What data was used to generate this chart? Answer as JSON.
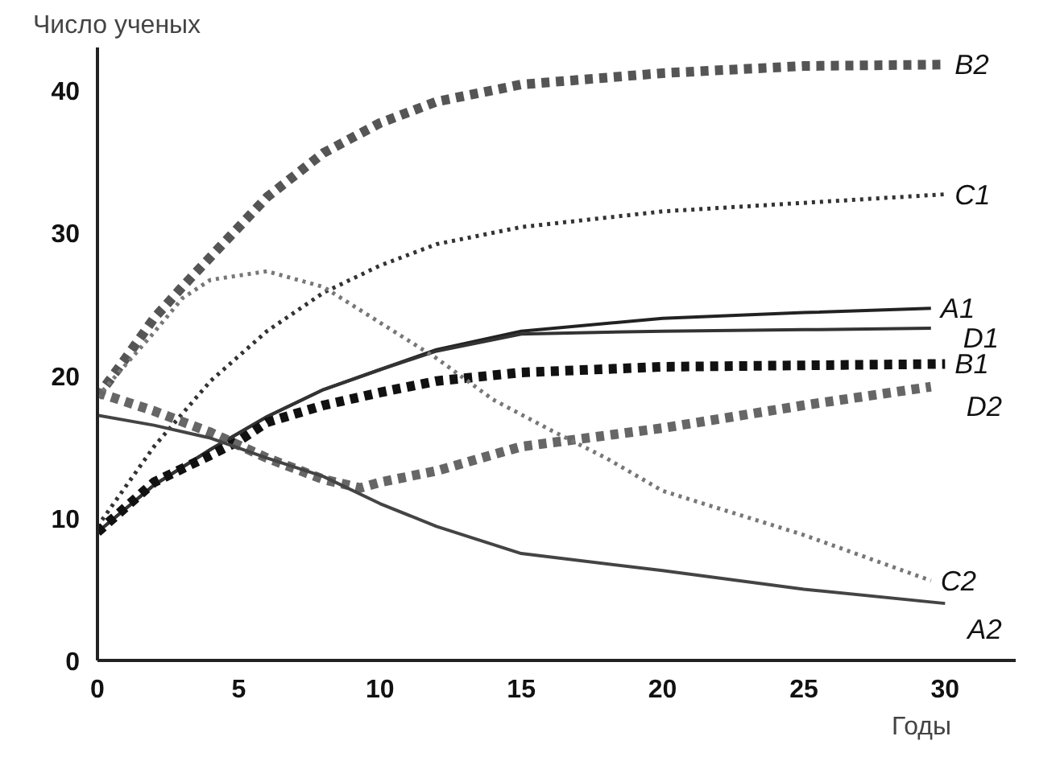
{
  "chart_data": {
    "type": "line",
    "ylabel": "Число ученых",
    "xlabel": "Годы",
    "xlim": [
      0,
      32.5
    ],
    "ylim": [
      0,
      43
    ],
    "xticks": [
      0,
      5,
      10,
      15,
      20,
      25,
      30
    ],
    "yticks": [
      0,
      10,
      20,
      30,
      40
    ],
    "grid": false,
    "series": [
      {
        "name": "B2",
        "color": "#555555",
        "line_style": "dashed",
        "x": [
          0,
          1,
          2,
          3,
          4,
          5,
          6,
          8,
          10,
          12,
          15,
          20,
          25,
          30
        ],
        "values": [
          18.5,
          21.2,
          24,
          26.2,
          28.3,
          30.4,
          32.5,
          35.6,
          37.7,
          39.2,
          40.4,
          41.2,
          41.7,
          41.8
        ]
      },
      {
        "name": "C1",
        "color": "#333333",
        "line_style": "dotted",
        "x": [
          0,
          2,
          4,
          6,
          8,
          10,
          12,
          15,
          20,
          25,
          30
        ],
        "values": [
          9.4,
          15,
          19.6,
          23.1,
          25.8,
          27.7,
          29.2,
          30.4,
          31.5,
          32.1,
          32.7
        ]
      },
      {
        "name": "A1",
        "color": "#222222",
        "line_style": "solid",
        "x": [
          0,
          2,
          4,
          6,
          8,
          10,
          12,
          15,
          20,
          25,
          29.5
        ],
        "values": [
          9,
          12.3,
          14.8,
          17.1,
          19,
          20.4,
          21.8,
          23.1,
          24,
          24.4,
          24.7
        ]
      },
      {
        "name": "D1",
        "color": "#333333",
        "line_style": "solid",
        "x": [
          0,
          2,
          4,
          6,
          8,
          10,
          12,
          15,
          20,
          25,
          29.5
        ],
        "values": [
          9,
          12.3,
          14.8,
          17.1,
          19,
          20.4,
          21.7,
          22.9,
          23.1,
          23.2,
          23.3
        ]
      },
      {
        "name": "B1",
        "color": "#111111",
        "line_style": "dashed",
        "x": [
          0,
          2,
          4,
          5,
          6,
          8,
          10,
          12,
          15,
          20,
          30
        ],
        "values": [
          9,
          12.5,
          14.4,
          15.4,
          16.7,
          17.9,
          18.8,
          19.6,
          20.2,
          20.6,
          20.8
        ]
      },
      {
        "name": "D2",
        "color": "#666666",
        "line_style": "dashed",
        "x": [
          0,
          2,
          4,
          6,
          8,
          9.3,
          10,
          12,
          15,
          20,
          25,
          29.5
        ],
        "values": [
          18.8,
          17.5,
          16,
          14.2,
          12.7,
          12.1,
          12.5,
          13.3,
          15,
          16.3,
          17.9,
          19.2
        ]
      },
      {
        "name": "C2",
        "color": "#777777",
        "line_style": "dotted",
        "x": [
          0,
          2,
          3,
          4,
          6,
          8,
          10,
          12,
          14,
          16,
          18,
          20,
          25,
          29.5
        ],
        "values": [
          18.5,
          23,
          25.4,
          26.7,
          27.3,
          26.2,
          23.7,
          21.2,
          18.3,
          16.2,
          14.2,
          11.9,
          8.8,
          5.6
        ]
      },
      {
        "name": "A2",
        "color": "#444444",
        "line_style": "solid",
        "x": [
          0,
          2,
          4,
          6,
          8,
          10,
          12,
          15,
          20,
          25,
          30
        ],
        "values": [
          17.2,
          16.5,
          15.6,
          14.2,
          12.9,
          11,
          9.4,
          7.5,
          6.3,
          5,
          4
        ]
      }
    ]
  }
}
